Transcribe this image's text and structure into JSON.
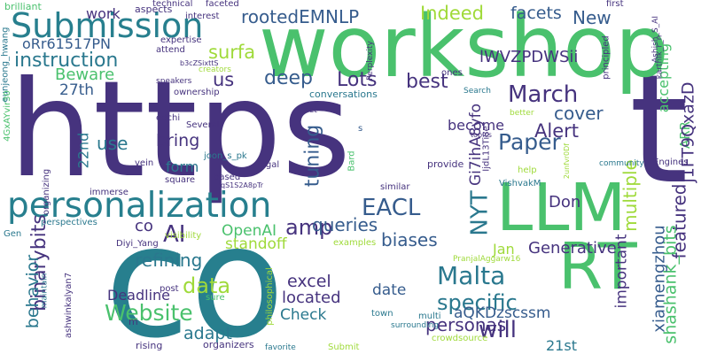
{
  "words": [
    {
      "id": 0,
      "text": "https",
      "color": "#46337e"
    },
    {
      "id": 1,
      "text": "t",
      "color": "#46337e"
    },
    {
      "id": 2,
      "text": "co",
      "color": "#277f8e"
    },
    {
      "id": 3,
      "text": "workshop",
      "color": "#4ac16d"
    },
    {
      "id": 4,
      "text": "LLM",
      "color": "#4ac16d"
    },
    {
      "id": 5,
      "text": "RT",
      "color": "#4ac16d"
    },
    {
      "id": 6,
      "text": "personalization",
      "color": "#277f8e"
    },
    {
      "id": 7,
      "text": "Submission",
      "color": "#277f8e"
    },
    {
      "id": 8,
      "text": "rootedEMNLP",
      "color": "#365c8d"
    },
    {
      "id": 9,
      "text": "Indeed",
      "color": "#a0da39"
    },
    {
      "id": 10,
      "text": "facets",
      "color": "#365c8d"
    },
    {
      "id": 11,
      "text": "New",
      "color": "#365c8d"
    },
    {
      "id": 12,
      "text": "surfa",
      "color": "#9fda3a"
    },
    {
      "id": 13,
      "text": "instruction",
      "color": "#2a788e"
    },
    {
      "id": 14,
      "text": "Beware",
      "color": "#4ac16d"
    },
    {
      "id": 15,
      "text": "27th",
      "color": "#365c8d"
    },
    {
      "id": 16,
      "text": "us",
      "color": "#46337e"
    },
    {
      "id": 17,
      "text": "deep",
      "color": "#365c8d"
    },
    {
      "id": 18,
      "text": "Lots",
      "color": "#46337e"
    },
    {
      "id": 19,
      "text": "best",
      "color": "#46337e"
    },
    {
      "id": 20,
      "text": "March",
      "color": "#46337e"
    },
    {
      "id": 21,
      "text": "Paper",
      "color": "#365c8d"
    },
    {
      "id": 22,
      "text": "Alert",
      "color": "#46337e"
    },
    {
      "id": 23,
      "text": "cover",
      "color": "#365c8d"
    },
    {
      "id": 24,
      "text": "lWVZPDWSii",
      "color": "#46337e"
    },
    {
      "id": 25,
      "text": "accepting",
      "color": "#4ac16d"
    },
    {
      "id": 26,
      "text": "ARR",
      "color": "#4ac16d"
    },
    {
      "id": 27,
      "text": "j1FT9QxazD",
      "color": "#46337e"
    },
    {
      "id": 28,
      "text": "EACL",
      "color": "#365c8d"
    },
    {
      "id": 29,
      "text": "amp",
      "color": "#46337e"
    },
    {
      "id": 30,
      "text": "queries",
      "color": "#365c8d"
    },
    {
      "id": 31,
      "text": "biases",
      "color": "#365c8d"
    },
    {
      "id": 32,
      "text": "AI",
      "color": "#46337e"
    },
    {
      "id": 33,
      "text": "co",
      "color": "#46337e"
    },
    {
      "id": 34,
      "text": "tuning",
      "color": "#365c8d"
    },
    {
      "id": 35,
      "text": "bring",
      "color": "#46337e"
    },
    {
      "id": 36,
      "text": "use",
      "color": "#2a788e"
    },
    {
      "id": 37,
      "text": "Website",
      "color": "#4ac16d"
    },
    {
      "id": 38,
      "text": "data",
      "color": "#9fda3a"
    },
    {
      "id": 39,
      "text": "refining",
      "color": "#2a788e"
    },
    {
      "id": 40,
      "text": "Malta",
      "color": "#2a788e"
    },
    {
      "id": 41,
      "text": "NYT",
      "color": "#2a788e"
    },
    {
      "id": 42,
      "text": "specific",
      "color": "#2a788e"
    },
    {
      "id": 43,
      "text": "will",
      "color": "#46337e"
    },
    {
      "id": 44,
      "text": "personas",
      "color": "#46337e"
    },
    {
      "id": 45,
      "text": "adapt",
      "color": "#2a788e"
    },
    {
      "id": 46,
      "text": "binarybits",
      "color": "#46337e"
    },
    {
      "id": 47,
      "text": "behavior",
      "color": "#2a788e"
    },
    {
      "id": 48,
      "text": "Deadline",
      "color": "#46337e"
    },
    {
      "id": 49,
      "text": "excel",
      "color": "#46337e"
    },
    {
      "id": 50,
      "text": "located",
      "color": "#46337e"
    },
    {
      "id": 51,
      "text": "date",
      "color": "#365c8d"
    },
    {
      "id": 52,
      "text": "Check",
      "color": "#2a788e"
    },
    {
      "id": 53,
      "text": "multiple",
      "color": "#9fda3a"
    },
    {
      "id": 54,
      "text": "featured",
      "color": "#46337e"
    },
    {
      "id": 55,
      "text": "Generative",
      "color": "#46337e"
    },
    {
      "id": 56,
      "text": "shashank_bits",
      "color": "#4ac16d"
    },
    {
      "id": 57,
      "text": "xiamengzhou",
      "color": "#365c8d"
    },
    {
      "id": 58,
      "text": "aQKDzscssm",
      "color": "#365c8d"
    },
    {
      "id": 59,
      "text": "21st",
      "color": "#2a788e"
    },
    {
      "id": 60,
      "text": "Jan",
      "color": "#9fda3a"
    },
    {
      "id": 61,
      "text": "Don",
      "color": "#46337e"
    },
    {
      "id": 62,
      "text": "important",
      "color": "#46337e"
    },
    {
      "id": 63,
      "text": "become",
      "color": "#46337e"
    },
    {
      "id": 64,
      "text": "Gi7ihA8yfo",
      "color": "#46337e"
    },
    {
      "id": 65,
      "text": "OpenAI",
      "color": "#4ac16d"
    },
    {
      "id": 66,
      "text": "standoff",
      "color": "#9fda3a"
    },
    {
      "id": 67,
      "text": "form",
      "color": "#2a788e"
    },
    {
      "id": 68,
      "text": "22nd",
      "color": "#2a788e"
    },
    {
      "id": 69,
      "text": "work",
      "color": "#46337e"
    },
    {
      "id": 70,
      "text": "oRr61517PN",
      "color": "#365c8d"
    },
    {
      "id": 71,
      "text": "brilliant",
      "color": "#4ac16d"
    },
    {
      "id": 72,
      "text": "eunjeong_hwang",
      "color": "#2a788e"
    },
    {
      "id": 73,
      "text": "4GxAYvir30",
      "color": "#4ac16d"
    },
    {
      "id": 74,
      "text": "aspects",
      "color": "#46337e"
    },
    {
      "id": 75,
      "text": "technical",
      "color": "#46337e"
    },
    {
      "id": 76,
      "text": "faceted",
      "color": "#46337e"
    },
    {
      "id": 77,
      "text": "interest",
      "color": "#46337e"
    },
    {
      "id": 78,
      "text": "expertise",
      "color": "#46337e"
    },
    {
      "id": 79,
      "text": "attend",
      "color": "#46337e"
    },
    {
      "id": 80,
      "text": "b3cZSixttS",
      "color": "#46337e"
    },
    {
      "id": 81,
      "text": "creators",
      "color": "#9fda3a"
    },
    {
      "id": 82,
      "text": "speakers",
      "color": "#46337e"
    },
    {
      "id": 83,
      "text": "ownership",
      "color": "#46337e"
    },
    {
      "id": 84,
      "text": "conversations",
      "color": "#2a788e"
    },
    {
      "id": 85,
      "text": "Perplexity",
      "color": "#46337e"
    },
    {
      "id": 86,
      "text": "first",
      "color": "#46337e"
    },
    {
      "id": 87,
      "text": "Ashish_S_AI",
      "color": "#46337e"
    },
    {
      "id": 88,
      "text": "principled",
      "color": "#46337e"
    },
    {
      "id": 89,
      "text": "karthik_r_n",
      "color": "#46337e"
    },
    {
      "id": 90,
      "text": "ones",
      "color": "#46337e"
    },
    {
      "id": 91,
      "text": "Search",
      "color": "#2a788e"
    },
    {
      "id": 92,
      "text": "better",
      "color": "#9fda3a"
    },
    {
      "id": 93,
      "text": "topics",
      "color": "#46337e"
    },
    {
      "id": 94,
      "text": "set",
      "color": "#46337e"
    },
    {
      "id": 95,
      "text": "s",
      "color": "#365c8d"
    },
    {
      "id": 96,
      "text": "edchi",
      "color": "#46337e"
    },
    {
      "id": 97,
      "text": "Several",
      "color": "#46337e"
    },
    {
      "id": 98,
      "text": "joon_s_pk",
      "color": "#2a788e"
    },
    {
      "id": 99,
      "text": "vein",
      "color": "#46337e"
    },
    {
      "id": 100,
      "text": "based",
      "color": "#46337e"
    },
    {
      "id": 101,
      "text": "qS1S2A8pTr",
      "color": "#46337e"
    },
    {
      "id": 102,
      "text": "square",
      "color": "#46337e"
    },
    {
      "id": 103,
      "text": "legal",
      "color": "#46337e"
    },
    {
      "id": 104,
      "text": "Bard",
      "color": "#4ac16d"
    },
    {
      "id": 105,
      "text": "provide",
      "color": "#46337e"
    },
    {
      "id": 106,
      "text": "help",
      "color": "#9fda3a"
    },
    {
      "id": 107,
      "text": "community",
      "color": "#2a788e"
    },
    {
      "id": 108,
      "text": "Engines",
      "color": "#46337e"
    },
    {
      "id": 109,
      "text": "IjdL13Ti8e",
      "color": "#46337e"
    },
    {
      "id": 110,
      "text": "2unfvr0Df",
      "color": "#9fda3a"
    },
    {
      "id": 111,
      "text": "VishvakM",
      "color": "#2a788e"
    },
    {
      "id": 112,
      "text": "organizing",
      "color": "#46337e"
    },
    {
      "id": 113,
      "text": "immerse",
      "color": "#46337e"
    },
    {
      "id": 114,
      "text": "similar",
      "color": "#46337e"
    },
    {
      "id": 115,
      "text": "perspectives",
      "color": "#2a788e"
    },
    {
      "id": 116,
      "text": "Gen",
      "color": "#2a788e"
    },
    {
      "id": 117,
      "text": "visibility",
      "color": "#9fda3a"
    },
    {
      "id": 118,
      "text": "Diyi_Yang",
      "color": "#46337e"
    },
    {
      "id": 119,
      "text": "examples",
      "color": "#9fda3a"
    },
    {
      "id": 120,
      "text": "PranjalAggarw16",
      "color": "#9fda3a"
    },
    {
      "id": 121,
      "text": "maintain",
      "color": "#2a788e"
    },
    {
      "id": 122,
      "text": "ashwinkalyan7",
      "color": "#46337e"
    },
    {
      "id": 123,
      "text": "post",
      "color": "#46337e"
    },
    {
      "id": 124,
      "text": "sure",
      "color": "#4ac16d"
    },
    {
      "id": 125,
      "text": "philosophical",
      "color": "#9fda3a"
    },
    {
      "id": 126,
      "text": "town",
      "color": "#2a788e"
    },
    {
      "id": 127,
      "text": "multi",
      "color": "#2a788e"
    },
    {
      "id": 128,
      "text": "surrounding",
      "color": "#2a788e"
    },
    {
      "id": 129,
      "text": "m",
      "color": "#46337e"
    },
    {
      "id": 130,
      "text": "rising",
      "color": "#46337e"
    },
    {
      "id": 131,
      "text": "organizers",
      "color": "#46337e"
    },
    {
      "id": 132,
      "text": "favorite",
      "color": "#2a788e"
    },
    {
      "id": 133,
      "text": "Submit",
      "color": "#9fda3a"
    },
    {
      "id": 134,
      "text": "crowdsource",
      "color": "#9fda3a"
    }
  ]
}
